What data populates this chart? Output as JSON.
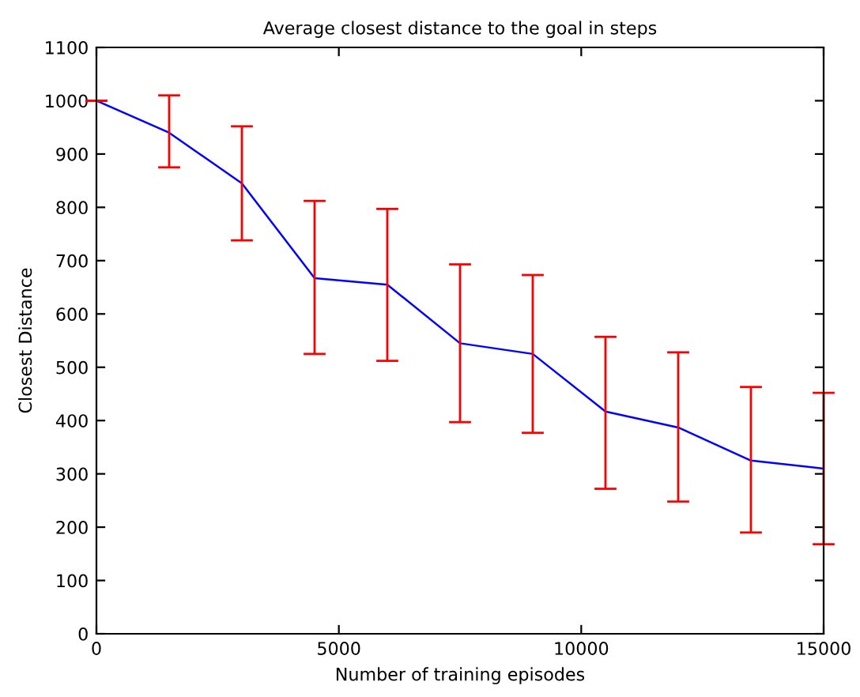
{
  "chart_data": {
    "type": "line",
    "title": "Average closest distance to the goal in steps",
    "xlabel": "Number of training episodes",
    "ylabel": "Closest Distance",
    "x": [
      0,
      1500,
      3000,
      4500,
      6000,
      7500,
      9000,
      10500,
      12000,
      13500,
      15000
    ],
    "series": [
      {
        "color": "#0000ff",
        "values": [
          1000,
          940,
          845,
          667,
          655,
          545,
          525,
          417,
          387,
          325,
          310
        ],
        "errors": [
          0,
          [
            875,
            1010
          ],
          [
            738,
            952
          ],
          [
            525,
            812
          ],
          [
            512,
            797
          ],
          [
            397,
            693
          ],
          [
            377,
            673
          ],
          [
            272,
            557
          ],
          [
            248,
            528
          ],
          [
            190,
            463
          ],
          [
            168,
            452
          ]
        ]
      }
    ],
    "xlim": [
      0,
      15000
    ],
    "xticks": [
      0,
      5000,
      10000,
      15000
    ],
    "ylim": [
      0,
      1100
    ],
    "yticks": [
      0,
      100,
      200,
      300,
      400,
      500,
      600,
      700,
      800,
      900,
      1000,
      1100
    ],
    "grid": false,
    "legend": false,
    "marker": "none",
    "line_style": "solid"
  }
}
